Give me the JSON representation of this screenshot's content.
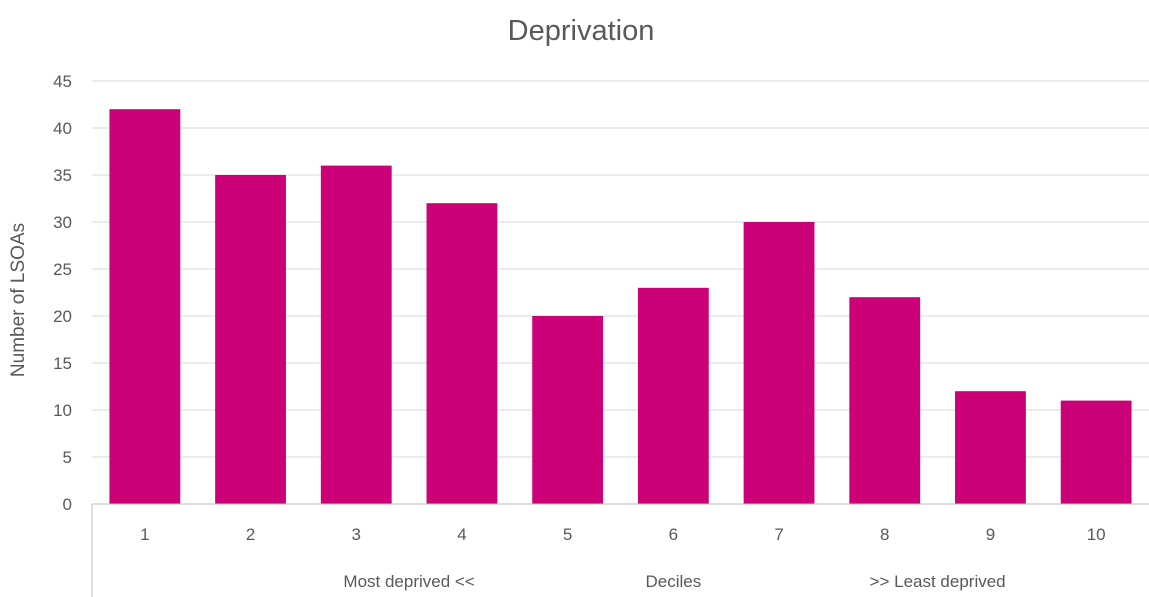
{
  "chart_data": {
    "type": "bar",
    "title": "Deprivation",
    "xlabel": "Deciles",
    "ylabel": "Number of LSOAs",
    "categories": [
      "1",
      "2",
      "3",
      "4",
      "5",
      "6",
      "7",
      "8",
      "9",
      "10"
    ],
    "values": [
      42,
      35,
      36,
      32,
      20,
      23,
      30,
      22,
      12,
      11
    ],
    "ylim": [
      0,
      45
    ],
    "yticks": [
      0,
      5,
      10,
      15,
      20,
      25,
      30,
      35,
      40,
      45
    ],
    "category_groups": [
      "Most deprived <<",
      "Deciles",
      ">> Least deprived"
    ],
    "bar_color": "#cc0077",
    "grid": true,
    "legend": "none"
  }
}
